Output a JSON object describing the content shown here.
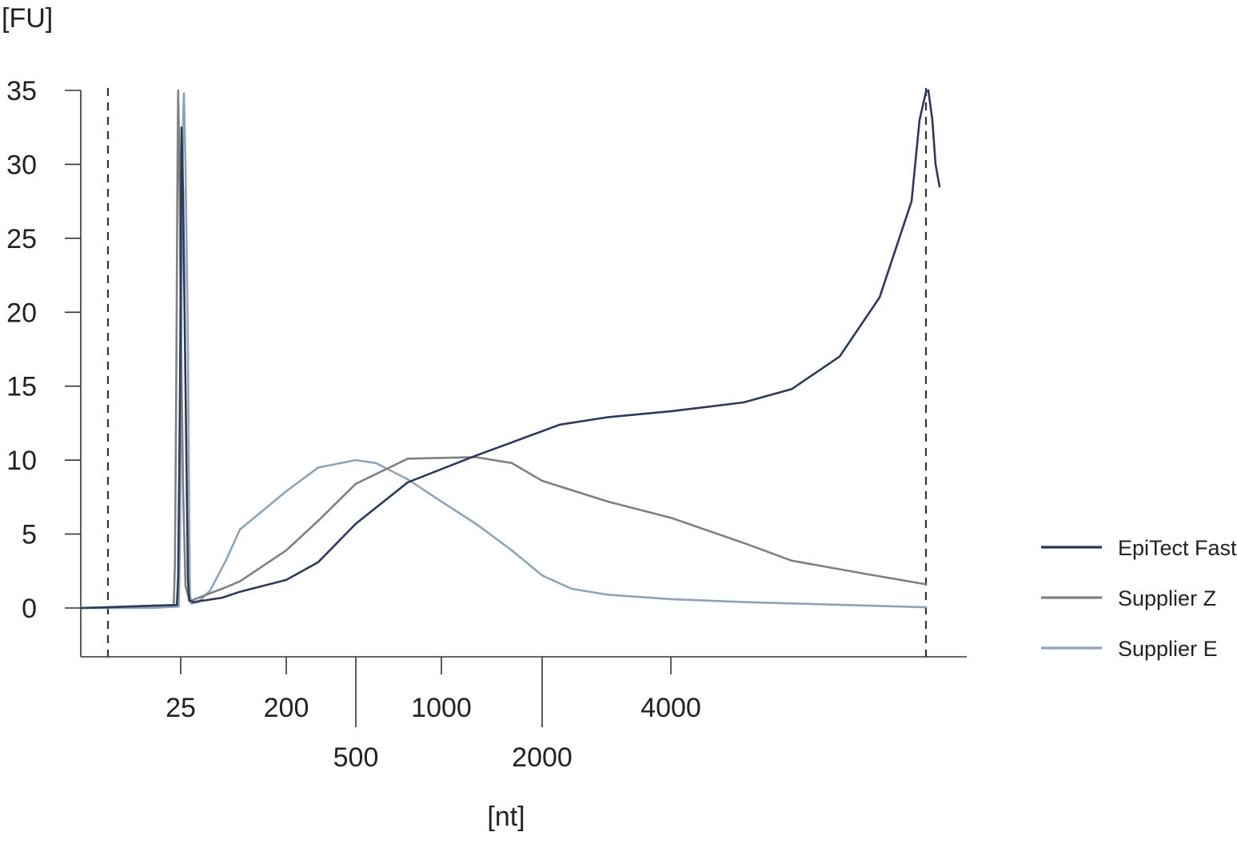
{
  "chart_data": {
    "type": "line",
    "ylabel": "[FU]",
    "xlabel": "[nt]",
    "ylim": [
      -3.3,
      35
    ],
    "yticks": [
      0,
      5,
      10,
      15,
      20,
      25,
      30,
      35
    ],
    "xticks": [
      {
        "label": "25",
        "value": 25
      },
      {
        "label": "200",
        "value": 200
      },
      {
        "label": "500",
        "value": 500
      },
      {
        "label": "1000",
        "value": 1000
      },
      {
        "label": "2000",
        "value": 2000
      },
      {
        "label": "4000",
        "value": 4000
      }
    ],
    "marker_positions": [
      15,
      6000
    ],
    "grid": false,
    "legend_position": "right",
    "series": [
      {
        "name": "EpiTect Fast",
        "color": "#2b3a5c",
        "points": [
          [
            9,
            0
          ],
          [
            15,
            0.05
          ],
          [
            20,
            0.15
          ],
          [
            24.4,
            0.2
          ],
          [
            24.6,
            2
          ],
          [
            24.9,
            15
          ],
          [
            25.1,
            32.5
          ],
          [
            25.3,
            28
          ],
          [
            25.6,
            15
          ],
          [
            25.9,
            2
          ],
          [
            26.2,
            0.5
          ],
          [
            28,
            0.4
          ],
          [
            50,
            0.7
          ],
          [
            100,
            1.1
          ],
          [
            200,
            1.9
          ],
          [
            300,
            3.1
          ],
          [
            500,
            5.7
          ],
          [
            800,
            8.5
          ],
          [
            1200,
            10.3
          ],
          [
            1700,
            11.5
          ],
          [
            2300,
            12.4
          ],
          [
            3000,
            12.9
          ],
          [
            4000,
            13.3
          ],
          [
            5000,
            13.9
          ],
          [
            5500,
            14.8
          ],
          [
            5700,
            17
          ],
          [
            5850,
            21
          ],
          [
            5940,
            27.5
          ],
          [
            5980,
            33
          ],
          [
            6000,
            34.9
          ],
          [
            6010,
            35
          ],
          [
            6030,
            33
          ],
          [
            6050,
            30
          ],
          [
            6080,
            28.5
          ]
        ]
      },
      {
        "name": "Supplier Z",
        "color": "#808080",
        "points": [
          [
            9,
            0
          ],
          [
            15,
            0.05
          ],
          [
            20,
            0.15
          ],
          [
            23.9,
            0.2
          ],
          [
            24.1,
            3
          ],
          [
            24.3,
            15
          ],
          [
            24.5,
            30
          ],
          [
            24.6,
            35
          ],
          [
            24.8,
            30
          ],
          [
            25,
            20
          ],
          [
            25.3,
            8
          ],
          [
            25.6,
            1.5
          ],
          [
            26,
            0.7
          ],
          [
            27,
            0.5
          ],
          [
            40,
            1
          ],
          [
            60,
            1.4
          ],
          [
            100,
            1.8
          ],
          [
            200,
            3.9
          ],
          [
            300,
            5.9
          ],
          [
            500,
            8.4
          ],
          [
            800,
            10.1
          ],
          [
            1200,
            10.2
          ],
          [
            1500,
            9.8
          ],
          [
            2000,
            8.6
          ],
          [
            3000,
            7.2
          ],
          [
            4000,
            6.1
          ],
          [
            5000,
            4.4
          ],
          [
            5500,
            3.2
          ],
          [
            5800,
            2.3
          ],
          [
            6000,
            1.6
          ]
        ]
      },
      {
        "name": "Supplier E",
        "color": "#8fa3b8",
        "points": [
          [
            9,
            0
          ],
          [
            15,
            0
          ],
          [
            20,
            0
          ],
          [
            24.7,
            0.1
          ],
          [
            24.9,
            5
          ],
          [
            25.1,
            20
          ],
          [
            25.3,
            33
          ],
          [
            25.4,
            34.8
          ],
          [
            25.6,
            30
          ],
          [
            25.9,
            18
          ],
          [
            26.2,
            6
          ],
          [
            26.5,
            1
          ],
          [
            27,
            0.3
          ],
          [
            30,
            0.4
          ],
          [
            40,
            1.2
          ],
          [
            60,
            3.2
          ],
          [
            100,
            5.3
          ],
          [
            200,
            7.9
          ],
          [
            300,
            9.5
          ],
          [
            500,
            10
          ],
          [
            600,
            9.8
          ],
          [
            800,
            8.7
          ],
          [
            1000,
            7.2
          ],
          [
            1200,
            5.7
          ],
          [
            1500,
            3.9
          ],
          [
            2000,
            2.2
          ],
          [
            2500,
            1.3
          ],
          [
            3000,
            0.9
          ],
          [
            4000,
            0.6
          ],
          [
            5000,
            0.4
          ],
          [
            6000,
            0.05
          ]
        ]
      }
    ]
  }
}
